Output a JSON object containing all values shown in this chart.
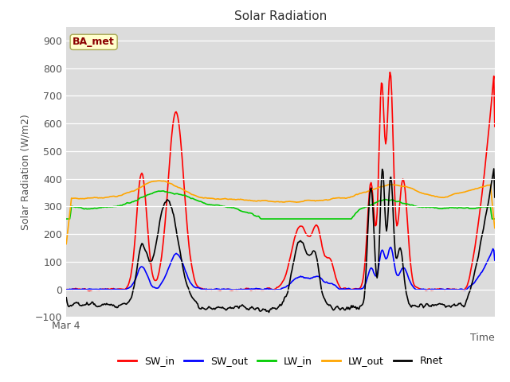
{
  "title": "Solar Radiation",
  "ylabel": "Solar Radiation (W/m2)",
  "xlabel": "Time",
  "xlabel_date": "Mar 4",
  "ylim": [
    -100,
    950
  ],
  "yticks": [
    -100,
    0,
    100,
    200,
    300,
    400,
    500,
    600,
    700,
    800,
    900
  ],
  "annotation": "BA_met",
  "annotation_color": "#8B0000",
  "annotation_bg": "#FFFFCC",
  "bg_color": "#DCDCDC",
  "line_colors": {
    "SW_in": "#FF0000",
    "SW_out": "#0000FF",
    "LW_in": "#00CC00",
    "LW_out": "#FFA500",
    "Rnet": "#000000"
  },
  "line_width": 1.2,
  "n_points": 500
}
